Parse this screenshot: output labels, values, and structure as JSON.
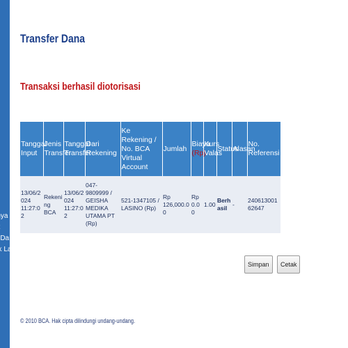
{
  "page": {
    "title": "Transfer Dana",
    "status_message": "Transaksi berhasil diotorisasi"
  },
  "sidebar": {
    "fragments": [
      "rnya",
      "nt",
      "n Da",
      "nk La"
    ]
  },
  "table": {
    "headers": {
      "tanggal_input": "Tanggal Input",
      "jenis_transfer": "Jenis Transfer",
      "tanggal_transfer": "Tanggal Transfer",
      "dari_rekening": "Dari Rekening",
      "ke_rekening": "Ke Rekening / No. BCA Virtual Account",
      "jumlah": "Jumlah",
      "biaya": "Biaya",
      "biaya_sub": "(Rp)",
      "kurs_valas": "Kurs Valas",
      "status": "Status",
      "alasan": "Alasan",
      "no_referensi": "No. Referensi"
    },
    "row": {
      "tanggal_input": "13/06/2024 11:27:02",
      "jenis_transfer": "Rekening BCA",
      "tanggal_transfer": "13/06/2024 11:27:02",
      "dari_rekening": "047-9809999 / GEISHA MEDIKA UTAMA PT (Rp)",
      "ke_rekening": "521-1347105 / LASINO (Rp)",
      "jumlah": "Rp 126,000.00",
      "biaya": "Rp 0.00",
      "kurs_valas": "1.00",
      "status": "Berhasil",
      "alasan": "-",
      "no_referensi": "24061300162647"
    }
  },
  "buttons": {
    "simpan": "Simpan",
    "cetak": "Cetak"
  },
  "footer": {
    "copyright": "© 2010 BCA. Hak cipta dilindungi undang-undang."
  },
  "colors": {
    "left_bar": "#2f6fb6",
    "header_bg": "#3b82c6",
    "title": "#1c3f8a",
    "status": "#c0171b",
    "row_bg": "#e9edf4"
  }
}
